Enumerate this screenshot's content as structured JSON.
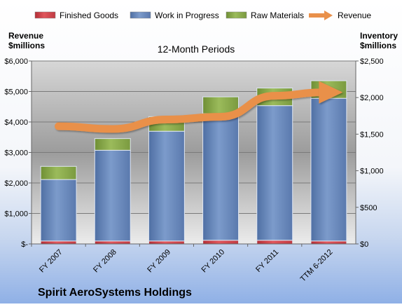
{
  "chart_data": {
    "type": "bar",
    "title": "Spirit AeroSystems Holdings",
    "subtitle": "12-Month Periods",
    "categories": [
      "FY 2007",
      "FY 2008",
      "FY 2009",
      "FY 2010",
      "FY 2011",
      "TTM 6-2012"
    ],
    "y_left_label": [
      "Revenue",
      "$millions"
    ],
    "y_right_label": [
      "Inventory",
      "$millions"
    ],
    "y_left_range": [
      0,
      6000
    ],
    "y_right_range": [
      0,
      2500
    ],
    "y_left_ticks": [
      "$-",
      "$1,000",
      "$2,000",
      "$3,000",
      "$4,000",
      "$5,000",
      "$6,000"
    ],
    "y_right_ticks": [
      "$0",
      "$500",
      "$1,000",
      "$1,500",
      "$2,000",
      "$2,500"
    ],
    "legend_position": "top",
    "grid": true,
    "series": [
      {
        "name": "Finished Goods",
        "axis": "right",
        "kind": "stacked-bar",
        "color": "#d9434a",
        "values": [
          40,
          40,
          40,
          50,
          50,
          40
        ]
      },
      {
        "name": "Work in Progress",
        "axis": "right",
        "kind": "stacked-bar",
        "color": "#6f8fc0",
        "values": [
          840,
          1240,
          1500,
          1730,
          1840,
          1950
        ]
      },
      {
        "name": "Raw Materials",
        "axis": "right",
        "kind": "stacked-bar",
        "color": "#8fae4f",
        "values": [
          180,
          160,
          200,
          230,
          240,
          240
        ]
      },
      {
        "name": "Revenue",
        "axis": "left",
        "kind": "line",
        "color": "#e9904a",
        "values": [
          3860,
          3770,
          4080,
          4170,
          4860,
          4970
        ]
      }
    ]
  }
}
